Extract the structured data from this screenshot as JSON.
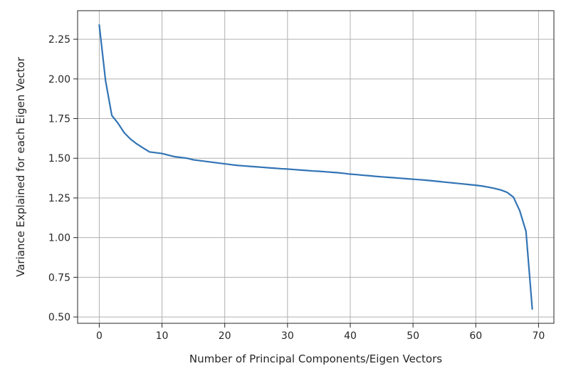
{
  "chart_data": {
    "type": "line",
    "title": "",
    "xlabel": "Number of Principal Components/Eigen Vectors",
    "ylabel": "Variance Explained for each Eigen Vector",
    "xlim": [
      -3.45,
      72.45
    ],
    "ylim": [
      0.46,
      2.43
    ],
    "grid": true,
    "x_ticks": [
      0,
      10,
      20,
      30,
      40,
      50,
      60,
      70
    ],
    "x_tick_labels": [
      "0",
      "10",
      "20",
      "30",
      "40",
      "50",
      "60",
      "70"
    ],
    "y_ticks": [
      0.5,
      0.75,
      1.0,
      1.25,
      1.5,
      1.75,
      2.0,
      2.25
    ],
    "y_tick_labels": [
      "0.50",
      "0.75",
      "1.00",
      "1.25",
      "1.50",
      "1.75",
      "2.00",
      "2.25"
    ],
    "line_color": "#3274b5",
    "series": [
      {
        "x": [
          0,
          1,
          2,
          3,
          4,
          5,
          6,
          7,
          8,
          9,
          10,
          11,
          12,
          13,
          14,
          15,
          16,
          17,
          18,
          19,
          20,
          21,
          22,
          23,
          24,
          25,
          26,
          27,
          28,
          29,
          30,
          31,
          32,
          33,
          34,
          35,
          36,
          37,
          38,
          39,
          40,
          41,
          42,
          43,
          44,
          45,
          46,
          47,
          48,
          49,
          50,
          51,
          52,
          53,
          54,
          55,
          56,
          57,
          58,
          59,
          60,
          61,
          62,
          63,
          64,
          65,
          66,
          67,
          68,
          69
        ],
        "y": [
          2.34,
          1.99,
          1.77,
          1.72,
          1.66,
          1.62,
          1.59,
          1.565,
          1.54,
          1.535,
          1.53,
          1.52,
          1.51,
          1.505,
          1.5,
          1.49,
          1.485,
          1.48,
          1.475,
          1.47,
          1.465,
          1.46,
          1.455,
          1.452,
          1.449,
          1.446,
          1.443,
          1.44,
          1.437,
          1.434,
          1.432,
          1.429,
          1.426,
          1.423,
          1.42,
          1.418,
          1.415,
          1.412,
          1.409,
          1.405,
          1.4,
          1.397,
          1.393,
          1.39,
          1.386,
          1.383,
          1.38,
          1.377,
          1.374,
          1.371,
          1.368,
          1.365,
          1.362,
          1.358,
          1.354,
          1.35,
          1.346,
          1.342,
          1.338,
          1.334,
          1.33,
          1.325,
          1.318,
          1.31,
          1.3,
          1.285,
          1.255,
          1.17,
          1.04,
          0.55
        ]
      }
    ]
  }
}
